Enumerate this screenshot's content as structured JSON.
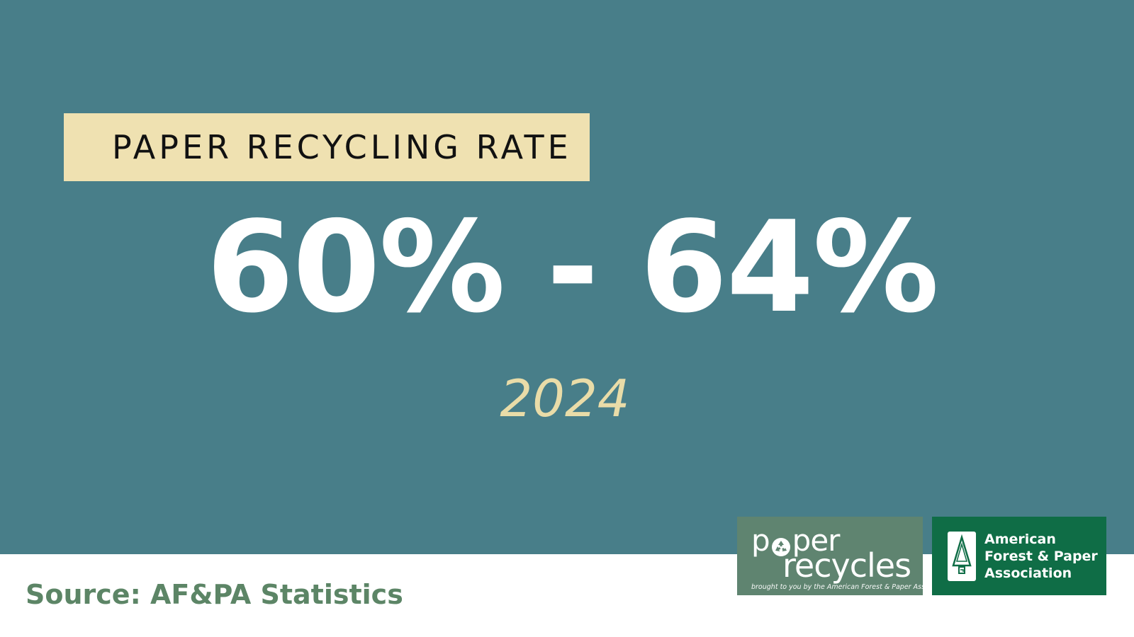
{
  "header": {
    "label": "PAPER RECYCLING RATE"
  },
  "stat": {
    "value": "60% - 64%",
    "year": "2024"
  },
  "footer": {
    "source": "Source: AF&PA Statistics"
  },
  "logos": {
    "paper_recycles": {
      "word1": [
        "p",
        "per"
      ],
      "word2": "recycles",
      "tagline": "brought to you by the American Forest & Paper Association",
      "icon": "recycle-icon"
    },
    "afpa": {
      "line1": "American",
      "line2": "Forest & Paper",
      "line3": "Association",
      "icon": "tree-icon"
    }
  },
  "colors": {
    "background": "#487e89",
    "label_box": "#efe1b1",
    "year": "#e9dca8",
    "source": "#5c8566",
    "paper_recycles_logo": "#5f8470",
    "afpa_logo": "#0f6d46"
  }
}
